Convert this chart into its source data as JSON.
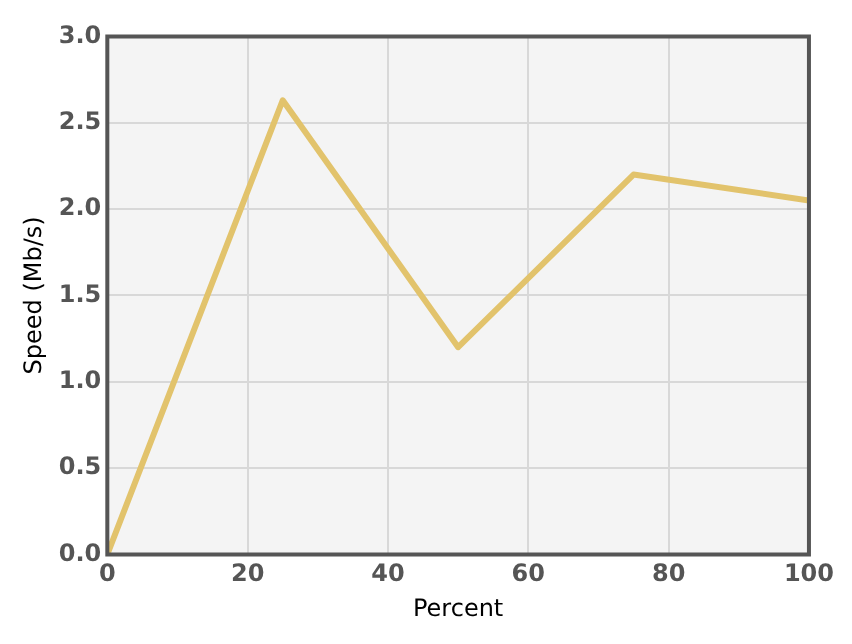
{
  "chart_data": {
    "type": "line",
    "xlabel": "Percent",
    "ylabel": "Speed (Mb/s)",
    "x": [
      0,
      25,
      50,
      75,
      100
    ],
    "series": [
      {
        "color": "#e2c36c",
        "values": [
          0,
          2.63,
          1.2,
          2.2,
          2.05
        ]
      }
    ],
    "xlim": [
      0,
      100
    ],
    "xticks": [
      0,
      20,
      40,
      60,
      80,
      100
    ],
    "ylim": [
      0,
      3
    ],
    "yticks": [
      {
        "value": 0,
        "label": "0.0"
      },
      {
        "value": 0.5,
        "label": "0.5"
      },
      {
        "value": 1,
        "label": "1.0"
      },
      {
        "value": 1.5,
        "label": "1.5"
      },
      {
        "value": 2,
        "label": "2.0"
      },
      {
        "value": 2.5,
        "label": "2.5"
      },
      {
        "value": 3,
        "label": "3.0"
      }
    ],
    "grid": true,
    "marker": "none",
    "line_style": "solid",
    "legend": false
  }
}
